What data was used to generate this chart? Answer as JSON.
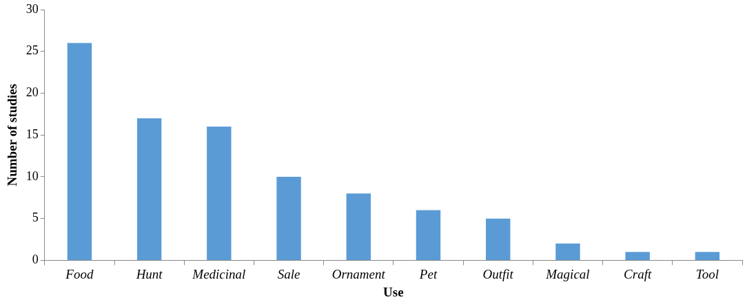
{
  "chart_data": {
    "type": "bar",
    "xlabel": "Use",
    "ylabel": "Number of studies",
    "categories": [
      "Food",
      "Hunt",
      "Medicinal",
      "Sale",
      "Ornament",
      "Pet",
      "Outfit",
      "Magical",
      "Craft",
      "Tool"
    ],
    "values": [
      26,
      17,
      16,
      10,
      8,
      6,
      5,
      2,
      1,
      1
    ],
    "color": "#5b9bd5",
    "ylim": [
      0,
      30
    ],
    "yticks": [
      0,
      5,
      10,
      15,
      20,
      25,
      30
    ]
  }
}
